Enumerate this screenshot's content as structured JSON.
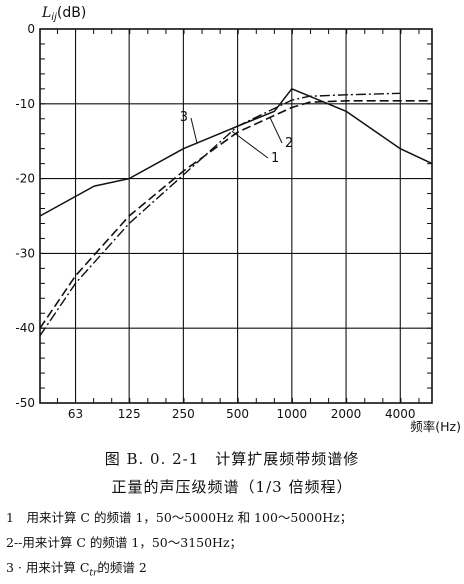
{
  "chart_data": {
    "type": "line",
    "ylabel": "L",
    "ylabel_sub": "ij",
    "ylabel_unit": "(dB)",
    "xlabel": "频率(Hz)",
    "ylim": [
      -50,
      0
    ],
    "yticks": [
      0,
      -10,
      -20,
      -30,
      -40,
      -50
    ],
    "xcategories": [
      "63",
      "125",
      "250",
      "500",
      "1000",
      "2000",
      "4000"
    ],
    "grid": true,
    "series": [
      {
        "name": "1",
        "style": "dash-dot",
        "points": [
          [
            40,
            -41
          ],
          [
            63,
            -34
          ],
          [
            125,
            -26
          ],
          [
            250,
            -19.5
          ],
          [
            500,
            -13
          ],
          [
            1000,
            -9.5
          ],
          [
            1250,
            -9.0
          ],
          [
            2000,
            -8.8
          ],
          [
            4000,
            -8.6
          ]
        ]
      },
      {
        "name": "2",
        "style": "dashed",
        "points": [
          [
            40,
            -40
          ],
          [
            63,
            -33
          ],
          [
            125,
            -25
          ],
          [
            250,
            -19
          ],
          [
            500,
            -13.8
          ],
          [
            1000,
            -10.5
          ],
          [
            1250,
            -9.8
          ],
          [
            2000,
            -9.6
          ],
          [
            4000,
            -9.6
          ],
          [
            6000,
            -9.6
          ]
        ]
      },
      {
        "name": "3",
        "style": "solid",
        "points": [
          [
            40,
            -25
          ],
          [
            80,
            -21
          ],
          [
            125,
            -20
          ],
          [
            250,
            -16
          ],
          [
            500,
            -13
          ],
          [
            800,
            -11
          ],
          [
            1000,
            -8
          ],
          [
            2000,
            -11
          ],
          [
            4000,
            -16
          ],
          [
            6000,
            -18
          ]
        ]
      }
    ]
  },
  "caption": {
    "line1": "图 B. 0. 2-1　计算扩展频带频谱修",
    "line2": "正量的声压级频谱（1/3 倍频程）"
  },
  "notes": [
    "1　用来计算 C 的频谱 1，50～5000Hz 和 100～5000Hz；",
    "2--用来计算 C 的频谱 1，50～3150Hz；",
    "3 · 用来计算 C"
  ],
  "note3_sub": "tr",
  "note3_tail": "的频谱 2"
}
